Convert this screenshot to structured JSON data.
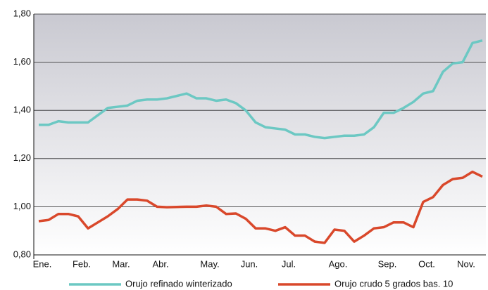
{
  "chart_data": {
    "type": "line",
    "categories": [
      "Ene.",
      null,
      null,
      null,
      "Feb.",
      null,
      null,
      null,
      "Mar.",
      null,
      null,
      null,
      "Abr.",
      null,
      null,
      null,
      null,
      "May.",
      null,
      null,
      null,
      "Jun.",
      null,
      null,
      null,
      "Jul.",
      null,
      null,
      null,
      null,
      "Ago.",
      null,
      null,
      null,
      null,
      "Sep.",
      null,
      null,
      null,
      "Oct.",
      null,
      null,
      null,
      "Nov.",
      null,
      null
    ],
    "series": [
      {
        "name": "Orujo refinado winterizado",
        "color": "#6cc8c3",
        "values": [
          1.34,
          1.34,
          1.355,
          1.35,
          1.35,
          1.35,
          1.38,
          1.41,
          1.415,
          1.42,
          1.44,
          1.445,
          1.445,
          1.45,
          1.46,
          1.47,
          1.45,
          1.45,
          1.44,
          1.445,
          1.43,
          1.4,
          1.35,
          1.33,
          1.325,
          1.32,
          1.3,
          1.3,
          1.29,
          1.285,
          1.29,
          1.295,
          1.295,
          1.3,
          1.33,
          1.39,
          1.39,
          1.41,
          1.435,
          1.47,
          1.48,
          1.56,
          1.595,
          1.6,
          1.68,
          1.69
        ]
      },
      {
        "name": "Orujo crudo 5 grados bas. 10",
        "color": "#d9482b",
        "values": [
          0.94,
          0.945,
          0.97,
          0.97,
          0.96,
          0.91,
          0.935,
          0.96,
          0.99,
          1.03,
          1.03,
          1.025,
          1.0,
          0.998,
          0.999,
          1.0,
          1.0,
          1.005,
          1.0,
          0.97,
          0.972,
          0.95,
          0.91,
          0.91,
          0.9,
          0.915,
          0.88,
          0.88,
          0.855,
          0.85,
          0.905,
          0.9,
          0.855,
          0.88,
          0.91,
          0.915,
          0.935,
          0.935,
          0.915,
          1.02,
          1.04,
          1.09,
          1.115,
          1.12,
          1.145,
          1.125
        ]
      }
    ],
    "ylim": [
      0.8,
      1.8
    ],
    "yticks": [
      {
        "value": 0.8,
        "label": "0,80"
      },
      {
        "value": 1.0,
        "label": "1,00"
      },
      {
        "value": 1.2,
        "label": "1,20"
      },
      {
        "value": 1.4,
        "label": "1,40"
      },
      {
        "value": 1.6,
        "label": "1,60"
      },
      {
        "value": 1.8,
        "label": "1,80"
      }
    ],
    "grid": true
  }
}
